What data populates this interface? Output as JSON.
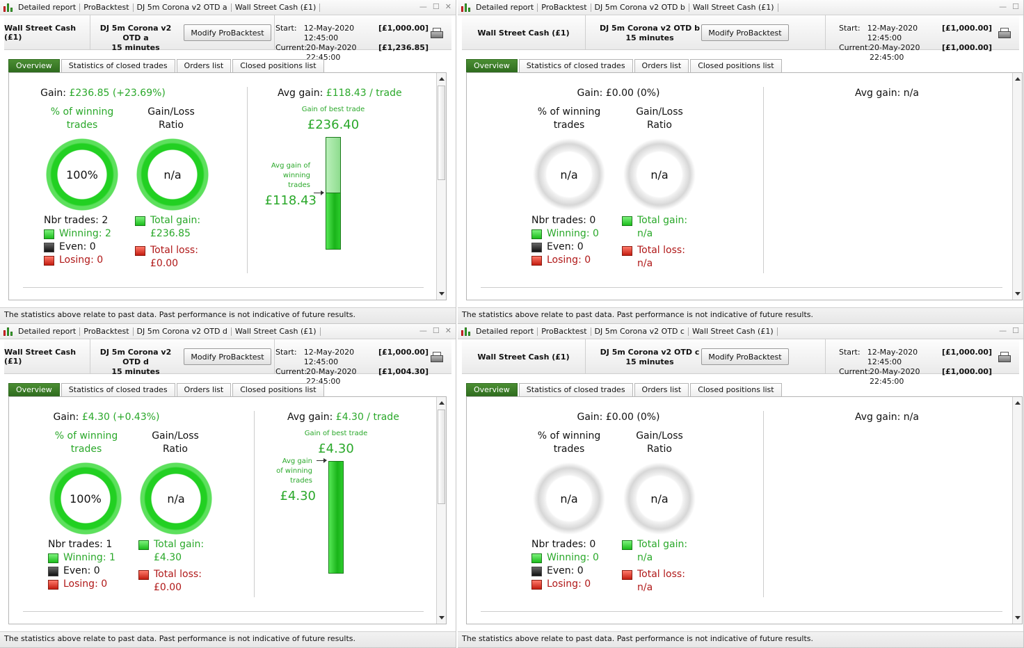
{
  "crumbs": {
    "report": "Detailed report",
    "probacktest": "ProBacktest",
    "instrument": "Wall Street Cash (£1)"
  },
  "modify_label": "Modify ProBacktest",
  "start_label": "Start:",
  "current_label": "Current:",
  "tabs": [
    "Overview",
    "Statistics of closed trades",
    "Orders list",
    "Closed positions list"
  ],
  "labels": {
    "gain": "Gain:",
    "avg_gain": "Avg gain:",
    "pct_win_1": "% of winning",
    "pct_win_2": "trades",
    "ratio_1": "Gain/Loss",
    "ratio_2": "Ratio",
    "gain_best": "Gain of best trade",
    "avg_gain_winning_a": "Avg gain of",
    "avg_gain_winning_b": "winning",
    "avg_gain_winning_c": "trades",
    "avg_gain_winning_d1": "Avg gain",
    "avg_gain_winning_d2": "of winning",
    "avg_gain_winning_d3": "trades",
    "total_gain": "Total gain:",
    "total_loss": "Total loss:"
  },
  "footer": "The statistics above relate to past data. Past performance is not indicative of future results.",
  "panels": [
    {
      "system": "DJ 5m Corona v2 OTD a",
      "system_crumb": "DJ 5m Corona v2 OTD a",
      "timeframe": "15 minutes",
      "start_date": "12-May-2020 12:45:00",
      "start_amount": "[£1,000.00]",
      "current_date": "20-May-2020 22:45:00",
      "current_amount": "[£1,236.85]",
      "gain": "£236.85 (+23.69%)",
      "avg_gain": "£118.43 / trade",
      "win_pct": "100%",
      "ratio": "n/a",
      "nbr_trades": "Nbr trades: 2",
      "winning": "Winning: 2",
      "even": "Even: 0",
      "losing": "Losing: 0",
      "total_gain_val": "£236.85",
      "total_loss_val": "£0.00",
      "best_trade": "£236.40",
      "avg_winning": "£118.43",
      "best_trade_value": 236.4,
      "avg_winning_value": 118.43
    },
    {
      "system": "DJ 5m Corona v2 OTD b",
      "system_crumb": "DJ 5m Corona v2 OTD b",
      "timeframe": "15 minutes",
      "start_date": "12-May-2020 12:45:00",
      "start_amount": "[£1,000.00]",
      "current_date": "20-May-2020 22:45:00",
      "current_amount": "[£1,000.00]",
      "gain": "£0.00 (0%)",
      "avg_gain": "n/a",
      "win_pct": "n/a",
      "ratio": "n/a",
      "nbr_trades": "Nbr trades: 0",
      "winning": "Winning: 0",
      "even": "Even: 0",
      "losing": "Losing: 0",
      "total_gain_val": "n/a",
      "total_loss_val": "n/a"
    },
    {
      "system": "DJ 5m Corona v2 OTD d",
      "system_crumb": "DJ 5m Corona v2 OTD d",
      "timeframe": "15 minutes",
      "start_date": "12-May-2020 12:45:00",
      "start_amount": "[£1,000.00]",
      "current_date": "20-May-2020 22:45:00",
      "current_amount": "[£1,004.30]",
      "gain": "£4.30 (+0.43%)",
      "avg_gain": "£4.30 / trade",
      "win_pct": "100%",
      "ratio": "n/a",
      "nbr_trades": "Nbr trades: 1",
      "winning": "Winning: 1",
      "even": "Even: 0",
      "losing": "Losing: 0",
      "total_gain_val": "£4.30",
      "total_loss_val": "£0.00",
      "best_trade": "£4.30",
      "avg_winning": "£4.30",
      "best_trade_value": 4.3,
      "avg_winning_value": 4.3
    },
    {
      "system": "DJ 5m Corona v2 OTD c",
      "system_crumb": "DJ 5m Corona v2 OTD c",
      "timeframe": "15 minutes",
      "start_date": "12-May-2020 12:45:00",
      "start_amount": "[£1,000.00]",
      "current_date": "20-May-2020 22:45:00",
      "current_amount": "[£1,000.00]",
      "gain": "£0.00 (0%)",
      "avg_gain": "n/a",
      "win_pct": "n/a",
      "ratio": "n/a",
      "nbr_trades": "Nbr trades: 0",
      "winning": "Winning: 0",
      "even": "Even: 0",
      "losing": "Losing: 0",
      "total_gain_val": "n/a",
      "total_loss_val": "n/a"
    }
  ]
}
